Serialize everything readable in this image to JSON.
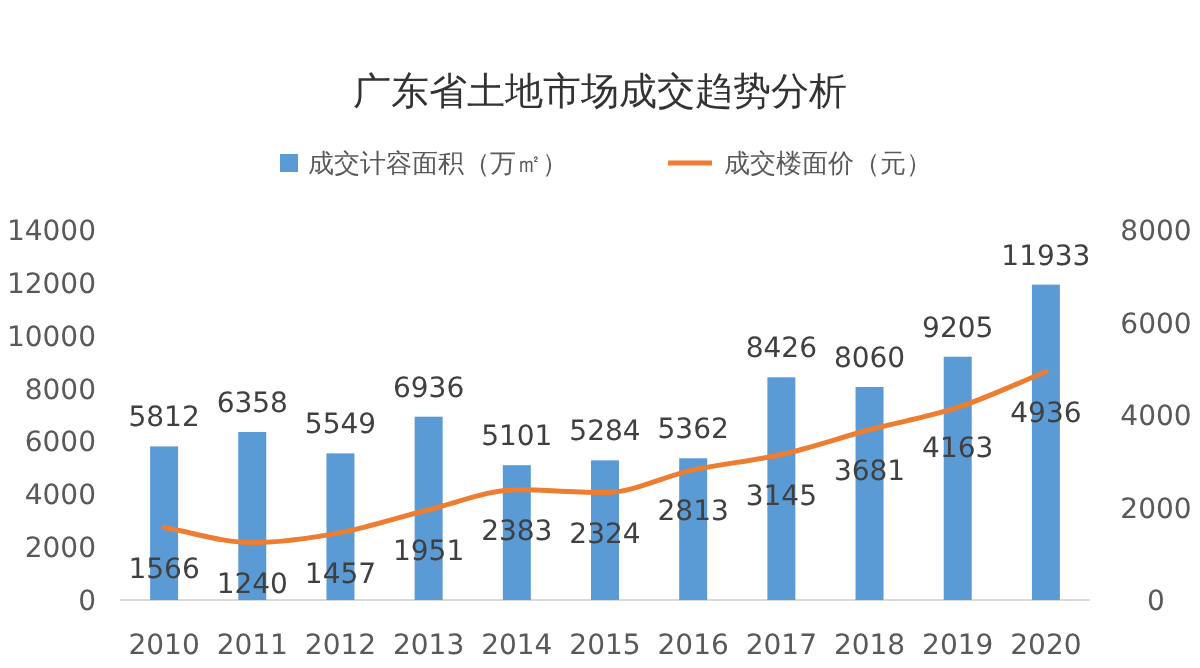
{
  "chart_data": {
    "type": "bar",
    "title": "广东省土地市场成交趋势分析",
    "categories": [
      "2010",
      "2011",
      "2012",
      "2013",
      "2014",
      "2015",
      "2016",
      "2017",
      "2018",
      "2019",
      "2020"
    ],
    "series": [
      {
        "name": "成交计容面积（万㎡）",
        "color": "#5b9bd5",
        "values": [
          5812,
          6358,
          5549,
          6936,
          5101,
          5284,
          5362,
          8426,
          8060,
          9205,
          11933
        ]
      },
      {
        "name": "成交楼面价（元）",
        "type": "line",
        "axis": "y2",
        "color": "#ed7d31",
        "values": [
          1566,
          1240,
          1457,
          1951,
          2383,
          2324,
          2813,
          3145,
          3681,
          4163,
          4936
        ]
      }
    ],
    "ylim": [
      0,
      14000
    ],
    "yticks": [
      0,
      2000,
      4000,
      6000,
      8000,
      10000,
      12000,
      14000
    ],
    "y2lim": [
      0,
      8000
    ],
    "y2ticks": [
      0,
      2000,
      4000,
      6000,
      8000
    ],
    "data_labels": true,
    "legend": "top",
    "grid": false,
    "marker": "none"
  }
}
